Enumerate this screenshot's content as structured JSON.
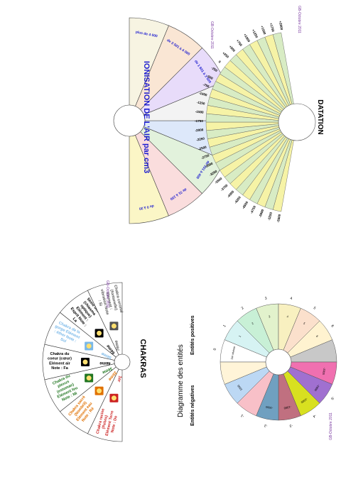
{
  "colors": {
    "line": "#333333",
    "title_blue": "#1f1fd0",
    "credit": "#7a3aa0",
    "black": "#000000"
  },
  "chakras": {
    "title": "CHAKRAS",
    "credit": "GB-Octobre 2011",
    "sectors": [
      {
        "name": "Chakra racine (Pelvis) Elément Terre Note : Do",
        "number": "1er",
        "color": "#cc2222",
        "fill": "#ffffff",
        "icon": "red-mandala-icon"
      },
      {
        "name": "Chakra sacré (Nombril) Elément eau Note : Ré",
        "number": "2ème",
        "color": "#e07000",
        "fill": "#ffffff",
        "icon": "orange-mandala-icon"
      },
      {
        "name": "Chakra du plexus (estomac) Elément feu Note : Mi",
        "number": "3ème",
        "color": "#227722",
        "fill": "#ffffff",
        "icon": "yellow-mandala-icon"
      },
      {
        "name": "Chakra du coeur (cœur) Elément air Note : Fa",
        "number": "4ème",
        "color": "#000000",
        "fill": "#ffffff",
        "icon": "green-mandala-icon"
      },
      {
        "name": "Chakra de la gorge Elément : éther Note : Sol",
        "number": "5ème",
        "color": "#7ab8e8",
        "fill": "#ffffff",
        "icon": "blue-mandala-icon"
      },
      {
        "name": "5ème oeil (chiasma optique) Elément : Esprit Note : La",
        "number": "6ème",
        "color": "#000000",
        "fill": "#ffffff",
        "icon": "indigo-mandala-icon"
      },
      {
        "name": "Chakra coronal (fontanelle) Elément : vibration Note : Si",
        "number": "7ème",
        "color": "#555555",
        "fill": "#ffffff",
        "icon": "rainbow-mandala-icon"
      }
    ]
  },
  "ionisation": {
    "title": "IONISATION DE L'AIR par cm3",
    "credit": "GB-Octobre 2011",
    "sectors": [
      {
        "label": "de 0 à 30",
        "fill": "#fbf6c6"
      },
      {
        "label": "de 31 à 150",
        "fill": "#fadddd"
      },
      {
        "label": "de 151 à 400",
        "fill": "#e2f2dc"
      },
      {
        "label": "de 401 à 1 050",
        "fill": "#dde8fa"
      },
      {
        "label": "de 1 051 à 1 600",
        "fill": "#f3f3f3"
      },
      {
        "label": "de 1 601 à 3 500",
        "fill": "#e8dcfa"
      },
      {
        "label": "de 3 501 à 4 000",
        "fill": "#fae6d4"
      },
      {
        "label": "plus de 4 000",
        "fill": "#f7f4e2"
      }
    ]
  },
  "datation": {
    "title": "DATATION",
    "credit": "GB-Octobre 2011",
    "labels": [
      "-5500",
      "-5250",
      "-5000",
      "-4750",
      "-4500",
      "-4250",
      "-4000",
      "-3750",
      "-3500",
      "-3250",
      "-3000",
      "-2750",
      "-2500",
      "-2250",
      "-2000",
      "-1750",
      "-1500",
      "-1250",
      "-1000",
      "-750",
      "-500",
      "-250",
      "0",
      "+250",
      "+500",
      "+750",
      "+1000",
      "+1250",
      "+1500",
      "+1750",
      "+2000"
    ],
    "fills": [
      "#f6f3a6",
      "#d8ecc4"
    ]
  },
  "entites": {
    "title": "Diagramme des entités",
    "negative_label": "Entités négatives",
    "positive_label": "Entités positives",
    "credit": "GB-Octobre 2011",
    "sectors": [
      {
        "label": "1er niveau",
        "fill": "#ffffff"
      },
      {
        "label": "1",
        "fill": "#d6f3f3"
      },
      {
        "label": "2",
        "fill": "#c8f0d6"
      },
      {
        "label": "3",
        "fill": "#e2f2cc"
      },
      {
        "label": "4",
        "fill": "#f8f0c0"
      },
      {
        "label": "5",
        "fill": "#fbe0cc"
      },
      {
        "label": "6",
        "fill": "#fff3d0"
      },
      {
        "label": "",
        "fill": "#c8c8c8"
      },
      {
        "label": "-1000",
        "fill": "#f070b0"
      },
      {
        "label": "-1000",
        "fill": "#a070d0"
      },
      {
        "label": "-1000",
        "fill": "#d8e020"
      },
      {
        "label": "-1000",
        "fill": "#c07080"
      },
      {
        "label": "-1000",
        "fill": "#70a0c0"
      },
      {
        "label": "",
        "fill": "#f8c0c8"
      },
      {
        "label": "1000",
        "fill": "#bcd8f4"
      },
      {
        "label": "",
        "fill": "#fff4d8"
      }
    ],
    "outer_labels": [
      "0",
      "1",
      "2",
      "3",
      "4",
      "5",
      "6",
      "",
      "-6",
      "-5",
      "-4",
      "-3",
      "-2",
      "-1",
      "",
      ""
    ]
  }
}
